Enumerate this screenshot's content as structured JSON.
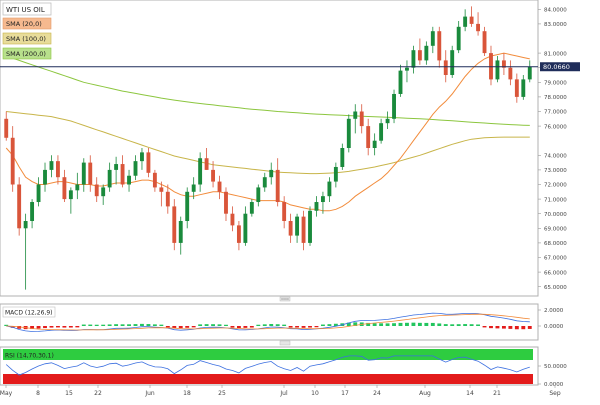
{
  "instrument": "WTI US OIL",
  "legend": [
    {
      "label": "SMA (20,0)",
      "color": "#f28c3c"
    },
    {
      "label": "SMA (100,0)",
      "color": "#c8b54a"
    },
    {
      "label": "SMA (200,0)",
      "color": "#8cc63f"
    }
  ],
  "last_price": "80.0660",
  "price_axis_ticks": [
    "84.0000",
    "83.0000",
    "81.0000",
    "80.0000",
    "79.0000",
    "78.0000",
    "77.0000",
    "76.0000",
    "74.0000",
    "73.0000",
    "72.0000",
    "71.0000",
    "70.0000",
    "69.0000",
    "68.0000",
    "67.0000",
    "66.0000",
    "65.0000"
  ],
  "macd": {
    "label": "MACD (12,26,9)",
    "ticks": [
      "2.0000",
      "0.0000"
    ]
  },
  "rsi": {
    "label": "RSI (14,70,30,1)",
    "ticks": [
      "50.0000",
      "0.0000"
    ]
  },
  "divider_label": "0000",
  "x_axis_labels": [
    "May",
    "8",
    "15",
    "22",
    "Jun",
    "18",
    "25",
    "Jul",
    "10",
    "17",
    "24",
    "Aug",
    "14",
    "21",
    "Sep"
  ],
  "colors": {
    "bull": "#1a8a3c",
    "bear": "#d9553a",
    "macd_pos": "#22c55e",
    "macd_neg": "#e31b1b",
    "macd_line": "#3b6fe0",
    "signal_line": "#f28c3c",
    "rsi_line": "#3b6fe0",
    "rsi_over": "#2ecc40",
    "rsi_under": "#e31b1b"
  },
  "chart_data": {
    "type": "candlestick",
    "ylim": [
      64.5,
      84.5
    ],
    "candles": [
      {
        "o": 76.5,
        "h": 77.0,
        "l": 75.0,
        "c": 75.2
      },
      {
        "o": 75.2,
        "h": 76.0,
        "l": 71.5,
        "c": 72.0
      },
      {
        "o": 72.0,
        "h": 72.5,
        "l": 68.5,
        "c": 69.0
      },
      {
        "o": 69.0,
        "h": 70.0,
        "l": 64.8,
        "c": 69.5
      },
      {
        "o": 69.5,
        "h": 71.0,
        "l": 69.0,
        "c": 70.8
      },
      {
        "o": 70.8,
        "h": 72.5,
        "l": 70.5,
        "c": 72.0
      },
      {
        "o": 72.0,
        "h": 73.5,
        "l": 71.5,
        "c": 73.0
      },
      {
        "o": 73.0,
        "h": 74.0,
        "l": 72.5,
        "c": 73.6
      },
      {
        "o": 73.6,
        "h": 74.0,
        "l": 72.0,
        "c": 72.5
      },
      {
        "o": 72.5,
        "h": 73.0,
        "l": 70.8,
        "c": 71.0
      },
      {
        "o": 71.0,
        "h": 71.8,
        "l": 70.0,
        "c": 71.6
      },
      {
        "o": 71.6,
        "h": 72.8,
        "l": 71.0,
        "c": 72.0
      },
      {
        "o": 72.0,
        "h": 73.8,
        "l": 71.5,
        "c": 73.5
      },
      {
        "o": 73.5,
        "h": 74.0,
        "l": 71.5,
        "c": 72.0
      },
      {
        "o": 72.0,
        "h": 72.5,
        "l": 70.8,
        "c": 71.2
      },
      {
        "o": 71.2,
        "h": 72.0,
        "l": 70.6,
        "c": 71.8
      },
      {
        "o": 71.8,
        "h": 73.5,
        "l": 71.5,
        "c": 73.0
      },
      {
        "o": 73.0,
        "h": 73.9,
        "l": 72.0,
        "c": 73.4
      },
      {
        "o": 73.4,
        "h": 74.0,
        "l": 71.8,
        "c": 72.0
      },
      {
        "o": 72.0,
        "h": 73.0,
        "l": 71.5,
        "c": 72.6
      },
      {
        "o": 72.6,
        "h": 74.0,
        "l": 72.3,
        "c": 73.6
      },
      {
        "o": 73.6,
        "h": 74.5,
        "l": 73.0,
        "c": 74.2
      },
      {
        "o": 74.2,
        "h": 74.5,
        "l": 72.5,
        "c": 72.8
      },
      {
        "o": 72.8,
        "h": 73.0,
        "l": 71.5,
        "c": 71.8
      },
      {
        "o": 71.8,
        "h": 72.2,
        "l": 70.5,
        "c": 71.5
      },
      {
        "o": 71.5,
        "h": 72.0,
        "l": 70.0,
        "c": 70.5
      },
      {
        "o": 70.5,
        "h": 71.0,
        "l": 67.5,
        "c": 68.0
      },
      {
        "o": 68.0,
        "h": 69.8,
        "l": 67.2,
        "c": 69.5
      },
      {
        "o": 69.5,
        "h": 71.8,
        "l": 69.0,
        "c": 71.5
      },
      {
        "o": 71.5,
        "h": 72.5,
        "l": 71.0,
        "c": 72.0
      },
      {
        "o": 72.0,
        "h": 74.2,
        "l": 71.5,
        "c": 73.8
      },
      {
        "o": 73.8,
        "h": 74.5,
        "l": 73.0,
        "c": 73.0
      },
      {
        "o": 73.0,
        "h": 73.6,
        "l": 71.8,
        "c": 72.2
      },
      {
        "o": 72.2,
        "h": 72.6,
        "l": 71.0,
        "c": 71.5
      },
      {
        "o": 71.5,
        "h": 71.8,
        "l": 69.5,
        "c": 70.0
      },
      {
        "o": 70.0,
        "h": 70.5,
        "l": 68.8,
        "c": 69.2
      },
      {
        "o": 69.2,
        "h": 69.5,
        "l": 67.5,
        "c": 68.0
      },
      {
        "o": 68.0,
        "h": 70.5,
        "l": 67.8,
        "c": 70.0
      },
      {
        "o": 70.0,
        "h": 71.0,
        "l": 69.8,
        "c": 70.8
      },
      {
        "o": 70.8,
        "h": 72.0,
        "l": 70.5,
        "c": 71.8
      },
      {
        "o": 71.8,
        "h": 72.8,
        "l": 71.5,
        "c": 72.5
      },
      {
        "o": 72.5,
        "h": 73.5,
        "l": 72.0,
        "c": 73.0
      },
      {
        "o": 73.0,
        "h": 73.8,
        "l": 70.5,
        "c": 70.8
      },
      {
        "o": 70.8,
        "h": 71.2,
        "l": 69.0,
        "c": 69.5
      },
      {
        "o": 69.5,
        "h": 70.0,
        "l": 68.0,
        "c": 68.5
      },
      {
        "o": 68.5,
        "h": 70.0,
        "l": 68.0,
        "c": 69.8
      },
      {
        "o": 69.8,
        "h": 70.2,
        "l": 67.5,
        "c": 68.0
      },
      {
        "o": 68.0,
        "h": 70.5,
        "l": 67.8,
        "c": 70.2
      },
      {
        "o": 70.2,
        "h": 71.2,
        "l": 69.8,
        "c": 70.8
      },
      {
        "o": 70.8,
        "h": 71.5,
        "l": 70.0,
        "c": 71.2
      },
      {
        "o": 71.2,
        "h": 72.5,
        "l": 70.8,
        "c": 72.2
      },
      {
        "o": 72.2,
        "h": 73.5,
        "l": 71.8,
        "c": 73.2
      },
      {
        "o": 73.2,
        "h": 74.8,
        "l": 73.0,
        "c": 74.5
      },
      {
        "o": 74.5,
        "h": 76.8,
        "l": 74.2,
        "c": 76.5
      },
      {
        "o": 76.5,
        "h": 77.5,
        "l": 75.5,
        "c": 77.0
      },
      {
        "o": 77.0,
        "h": 77.5,
        "l": 75.5,
        "c": 76.0
      },
      {
        "o": 76.0,
        "h": 76.5,
        "l": 74.0,
        "c": 74.5
      },
      {
        "o": 74.5,
        "h": 75.5,
        "l": 74.0,
        "c": 75.0
      },
      {
        "o": 75.0,
        "h": 76.5,
        "l": 74.8,
        "c": 76.2
      },
      {
        "o": 76.2,
        "h": 77.0,
        "l": 75.8,
        "c": 76.5
      },
      {
        "o": 76.5,
        "h": 78.5,
        "l": 76.2,
        "c": 78.2
      },
      {
        "o": 78.2,
        "h": 80.2,
        "l": 78.0,
        "c": 79.8
      },
      {
        "o": 79.8,
        "h": 80.5,
        "l": 79.0,
        "c": 80.0
      },
      {
        "o": 80.0,
        "h": 81.5,
        "l": 79.6,
        "c": 81.2
      },
      {
        "o": 81.2,
        "h": 82.0,
        "l": 80.2,
        "c": 80.5
      },
      {
        "o": 80.5,
        "h": 81.8,
        "l": 80.2,
        "c": 81.5
      },
      {
        "o": 81.5,
        "h": 82.8,
        "l": 81.0,
        "c": 82.5
      },
      {
        "o": 82.5,
        "h": 82.8,
        "l": 80.0,
        "c": 80.5
      },
      {
        "o": 80.5,
        "h": 81.2,
        "l": 79.0,
        "c": 79.5
      },
      {
        "o": 79.5,
        "h": 81.5,
        "l": 79.3,
        "c": 81.2
      },
      {
        "o": 81.2,
        "h": 83.2,
        "l": 81.0,
        "c": 82.8
      },
      {
        "o": 82.8,
        "h": 84.0,
        "l": 82.5,
        "c": 83.5
      },
      {
        "o": 83.5,
        "h": 84.2,
        "l": 82.8,
        "c": 83.0
      },
      {
        "o": 83.0,
        "h": 83.8,
        "l": 82.2,
        "c": 82.5
      },
      {
        "o": 82.5,
        "h": 82.8,
        "l": 80.8,
        "c": 81.0
      },
      {
        "o": 81.0,
        "h": 81.5,
        "l": 78.8,
        "c": 79.2
      },
      {
        "o": 79.2,
        "h": 80.8,
        "l": 79.0,
        "c": 80.5
      },
      {
        "o": 80.5,
        "h": 81.0,
        "l": 79.5,
        "c": 80.0
      },
      {
        "o": 80.0,
        "h": 80.5,
        "l": 78.8,
        "c": 79.2
      },
      {
        "o": 79.2,
        "h": 79.6,
        "l": 77.6,
        "c": 78.0
      },
      {
        "o": 78.0,
        "h": 79.5,
        "l": 77.8,
        "c": 79.2
      },
      {
        "o": 79.2,
        "h": 80.5,
        "l": 79.0,
        "c": 80.07
      }
    ],
    "sma20": [
      74.5,
      74.0,
      73.2,
      72.5,
      72.2,
      72.0,
      72.0,
      72.1,
      72.2,
      72.2,
      72.1,
      72.0,
      72.0,
      72.0,
      71.9,
      71.9,
      72.0,
      72.1,
      72.1,
      72.1,
      72.2,
      72.3,
      72.3,
      72.2,
      72.0,
      71.8,
      71.5,
      71.3,
      71.2,
      71.2,
      71.3,
      71.4,
      71.5,
      71.5,
      71.4,
      71.3,
      71.2,
      71.1,
      71.0,
      70.9,
      70.9,
      70.9,
      70.9,
      70.8,
      70.6,
      70.5,
      70.4,
      70.3,
      70.3,
      70.2,
      70.2,
      70.3,
      70.5,
      70.8,
      71.2,
      71.5,
      71.8,
      72.1,
      72.4,
      72.8,
      73.3,
      73.8,
      74.4,
      75.0,
      75.6,
      76.2,
      76.8,
      77.3,
      77.7,
      78.2,
      78.8,
      79.4,
      79.9,
      80.3,
      80.6,
      80.8,
      80.9,
      81.0,
      80.9,
      80.8,
      80.7,
      80.6
    ],
    "sma100": [
      77.0,
      76.95,
      76.9,
      76.85,
      76.8,
      76.75,
      76.7,
      76.65,
      76.55,
      76.45,
      76.35,
      76.2,
      76.05,
      75.9,
      75.75,
      75.6,
      75.45,
      75.3,
      75.15,
      75.0,
      74.85,
      74.7,
      74.55,
      74.4,
      74.25,
      74.1,
      73.95,
      73.85,
      73.75,
      73.65,
      73.55,
      73.45,
      73.35,
      73.3,
      73.25,
      73.2,
      73.15,
      73.1,
      73.05,
      73.0,
      72.95,
      72.9,
      72.85,
      72.82,
      72.8,
      72.78,
      72.76,
      72.75,
      72.75,
      72.76,
      72.78,
      72.8,
      72.85,
      72.9,
      72.97,
      73.05,
      73.12,
      73.2,
      73.3,
      73.4,
      73.5,
      73.62,
      73.75,
      73.88,
      74.0,
      74.15,
      74.3,
      74.45,
      74.6,
      74.75,
      74.88,
      75.0,
      75.1,
      75.15,
      75.2,
      75.22,
      75.24,
      75.25,
      75.25,
      75.25,
      75.25,
      75.25
    ],
    "sma200": [
      80.8,
      80.65,
      80.5,
      80.35,
      80.2,
      80.05,
      79.9,
      79.75,
      79.6,
      79.45,
      79.3,
      79.15,
      79.0,
      78.9,
      78.8,
      78.7,
      78.6,
      78.5,
      78.4,
      78.32,
      78.24,
      78.16,
      78.08,
      78.0,
      77.92,
      77.85,
      77.78,
      77.72,
      77.66,
      77.6,
      77.55,
      77.5,
      77.45,
      77.4,
      77.35,
      77.3,
      77.25,
      77.2,
      77.16,
      77.12,
      77.08,
      77.04,
      77.0,
      76.97,
      76.94,
      76.91,
      76.88,
      76.85,
      76.82,
      76.8,
      76.78,
      76.76,
      76.74,
      76.72,
      76.7,
      76.68,
      76.66,
      76.64,
      76.62,
      76.6,
      76.58,
      76.56,
      76.54,
      76.52,
      76.5,
      76.48,
      76.45,
      76.42,
      76.39,
      76.36,
      76.33,
      76.3,
      76.27,
      76.24,
      76.21,
      76.18,
      76.15,
      76.12,
      76.1,
      76.08,
      76.06,
      76.05
    ]
  }
}
